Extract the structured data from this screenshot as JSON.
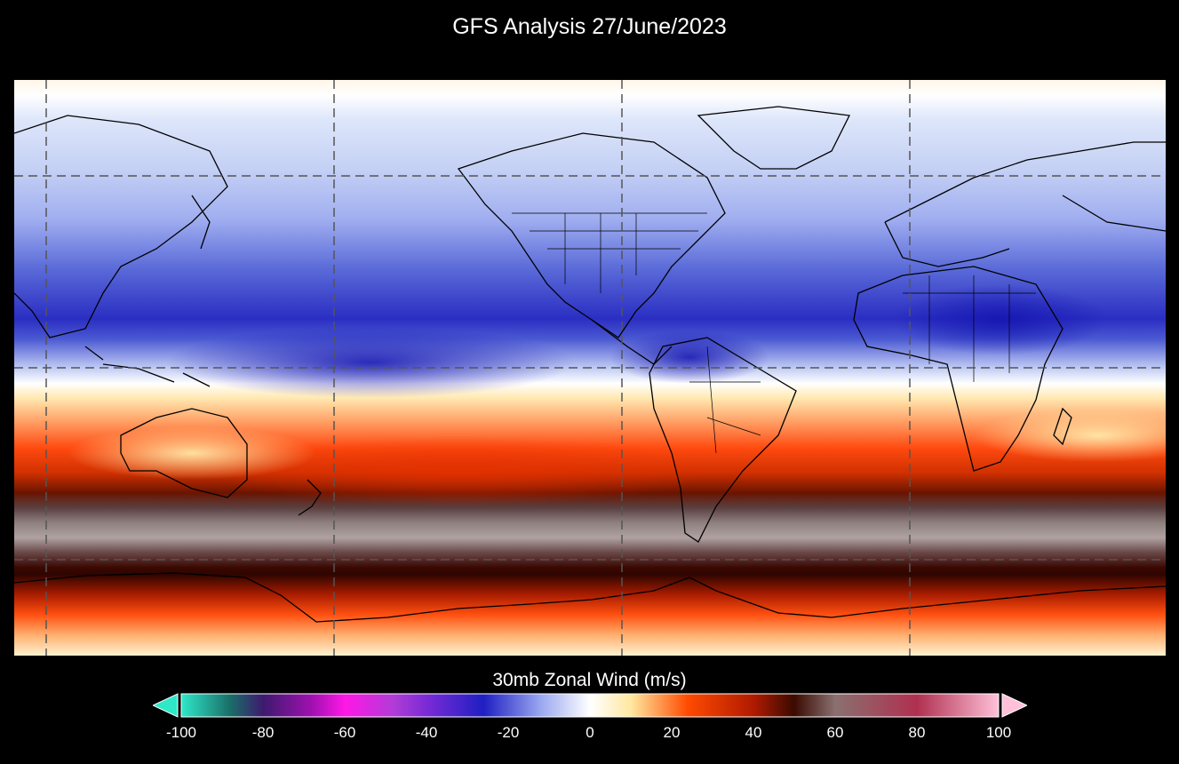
{
  "title": "GFS Analysis 27/June/2023",
  "colorbar": {
    "label": "30mb Zonal Wind (m/s)",
    "ticks": [
      "-100",
      "-80",
      "-60",
      "-40",
      "-20",
      "0",
      "20",
      "40",
      "60",
      "80",
      "100"
    ],
    "range": [
      -100,
      100
    ],
    "extend": "both"
  },
  "map": {
    "projection": "equirectangular",
    "center_longitude": 150,
    "gridlines": "dashed",
    "coastlines": true,
    "country_borders": true
  },
  "colors": {
    "background": "#000000",
    "minus100": "#2ee8c8",
    "minus80": "#3d1a6e",
    "minus60": "#ff17e6",
    "minus40": "#7a2bd6",
    "minus25": "#1f1fc2",
    "minus10": "#9aa8f0",
    "zero": "#ffffff",
    "plus10": "#ffe8a0",
    "plus25": "#ff4a00",
    "plus40": "#b01a00",
    "plus50": "#3a0a00",
    "plus60": "#8a7070",
    "plus80": "#b03050",
    "plus100": "#ffc0d8"
  }
}
